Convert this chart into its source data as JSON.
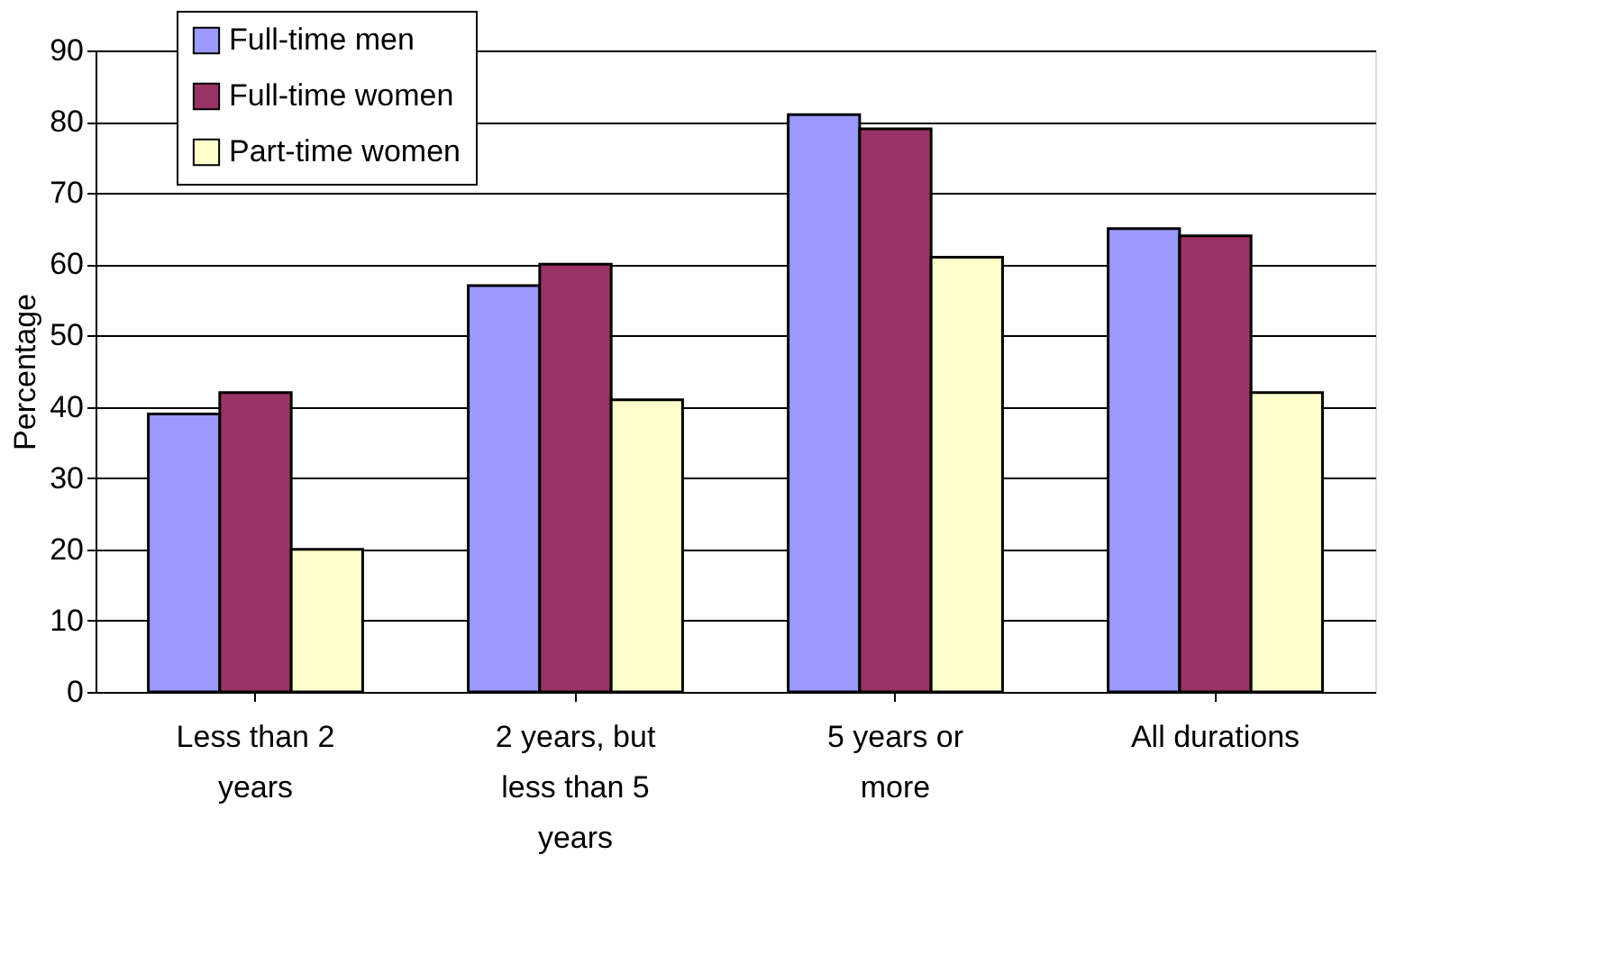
{
  "chart_data": {
    "type": "bar",
    "ylabel": "Percentage",
    "categories": [
      "Less than 2 years",
      "2 years, but less than 5 years",
      "5 years or more",
      "All durations"
    ],
    "series": [
      {
        "name": "Full-time men",
        "color": "#9999ff",
        "values": [
          39,
          57,
          81,
          65
        ]
      },
      {
        "name": "Full-time women",
        "color": "#993366",
        "values": [
          42,
          60,
          79,
          64
        ]
      },
      {
        "name": "Part-time women",
        "color": "#ffffcc",
        "values": [
          20,
          41,
          61,
          42
        ]
      }
    ],
    "ylim": [
      0,
      90
    ],
    "yticks": [
      0,
      10,
      20,
      30,
      40,
      50,
      60,
      70,
      80,
      90
    ],
    "grid": "y",
    "legend": "top left"
  }
}
